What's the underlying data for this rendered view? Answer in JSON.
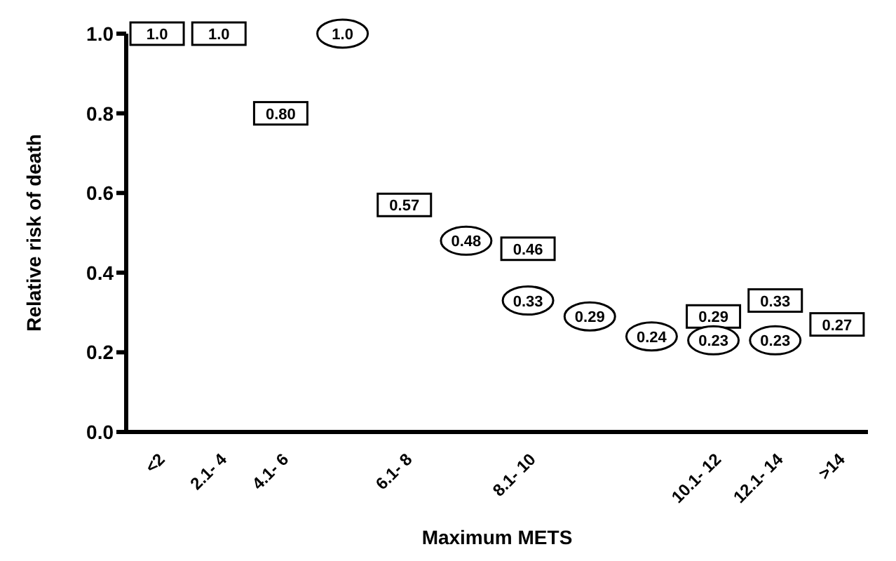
{
  "chart_data": {
    "type": "scatter",
    "xlabel": "Maximum METS",
    "ylabel": "Relative risk of death",
    "categories": [
      "<2",
      "2.1- 4",
      "4.1- 6",
      null,
      "6.1- 8",
      null,
      "8.1- 10",
      null,
      null,
      "10.1- 12",
      "12.1- 14",
      ">14"
    ],
    "series": [
      {
        "color": "#000000",
        "marker": "square",
        "values": [
          1.0,
          1.0,
          0.8,
          null,
          0.57,
          null,
          0.46,
          null,
          null,
          0.29,
          0.33,
          0.27
        ],
        "value_labels": [
          "1.0",
          "1.0",
          "0.80",
          null,
          "0.57",
          null,
          "0.46",
          null,
          null,
          "0.29",
          "0.33",
          "0.27"
        ]
      },
      {
        "color": "#000000",
        "marker": "circle",
        "values": [
          null,
          null,
          null,
          1.0,
          null,
          0.48,
          0.33,
          0.29,
          0.24,
          0.23,
          0.23,
          null
        ],
        "value_labels": [
          null,
          null,
          null,
          "1.0",
          null,
          "0.48",
          "0.33",
          "0.29",
          "0.24",
          "0.23",
          "0.23",
          null
        ]
      }
    ],
    "ylim": [
      0,
      1.0
    ],
    "yticks": [
      {
        "value": 0,
        "label": "0.0"
      },
      0.2,
      0.4,
      0.6,
      0.8,
      {
        "value": 1,
        "label": "1.0"
      }
    ],
    "grid": false,
    "legend": false
  }
}
